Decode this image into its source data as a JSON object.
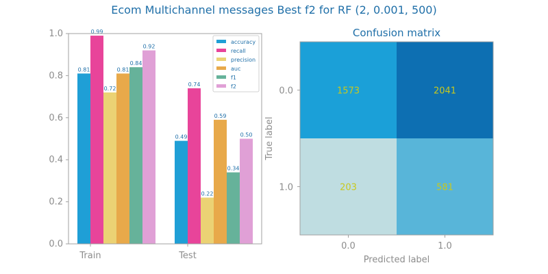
{
  "figure": {
    "suptitle": "Ecom Multichannel messages Best f2 for RF (2, 0.001, 500)"
  },
  "chart_data": [
    {
      "type": "bar",
      "title": "",
      "xlabel": "",
      "ylabel": "",
      "ylim": [
        0,
        1
      ],
      "yticks": [
        "0.0",
        "0.2",
        "0.4",
        "0.6",
        "0.8",
        "1.0"
      ],
      "categories": [
        "Train",
        "Test"
      ],
      "legend_position": "top-right",
      "series": [
        {
          "name": "accuracy",
          "color": "#1f9fd6",
          "values": [
            0.81,
            0.49
          ],
          "labels": [
            "0.81",
            "0.49"
          ]
        },
        {
          "name": "recall",
          "color": "#e8449a",
          "values": [
            0.99,
            0.74
          ],
          "labels": [
            "0.99",
            "0.74"
          ]
        },
        {
          "name": "precision",
          "color": "#ebd274",
          "values": [
            0.72,
            0.22
          ],
          "labels": [
            "0.72",
            "0.22"
          ]
        },
        {
          "name": "auc",
          "color": "#e8a94a",
          "values": [
            0.81,
            0.59
          ],
          "labels": [
            "0.81",
            "0.59"
          ]
        },
        {
          "name": "f1",
          "color": "#66b29a",
          "values": [
            0.84,
            0.34
          ],
          "labels": [
            "0.84",
            "0.34"
          ]
        },
        {
          "name": "f2",
          "color": "#e0a0d6",
          "values": [
            0.92,
            0.5
          ],
          "labels": [
            "0.92",
            "0.50"
          ]
        }
      ]
    },
    {
      "type": "heatmap",
      "title": "Confusion matrix",
      "xlabel": "Predicted label",
      "ylabel": "True label",
      "x_categories": [
        "0.0",
        "1.0"
      ],
      "y_categories": [
        "0.0",
        "1.0"
      ],
      "values": [
        [
          1573,
          2041
        ],
        [
          203,
          581
        ]
      ],
      "labels": [
        [
          "1573",
          "2041"
        ],
        [
          "203",
          "581"
        ]
      ],
      "colors": [
        [
          "#1ba0d8",
          "#0d6fb2"
        ],
        [
          "#bfdde1",
          "#58b5d9"
        ]
      ]
    }
  ]
}
